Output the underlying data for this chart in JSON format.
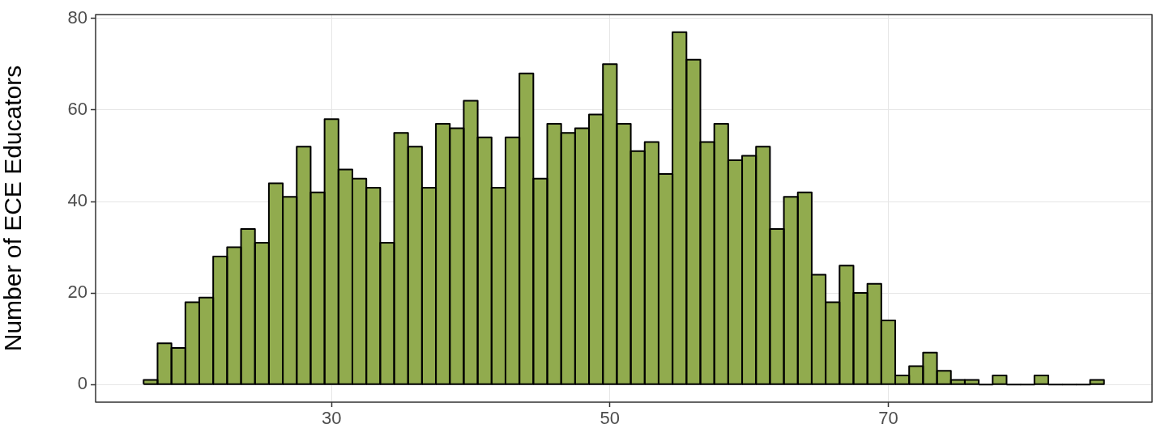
{
  "chart_data": {
    "type": "histogram",
    "ylabel": "Number of ECE Educators",
    "bins": [
      16.5,
      17.5,
      18.5,
      19.5,
      20.5,
      21.5,
      22.5,
      23.5,
      24.5,
      25.5,
      26.5,
      27.5,
      28.5,
      29.5,
      30.5,
      31.5,
      32.5,
      33.5,
      34.5,
      35.5,
      36.5,
      37.5,
      38.5,
      39.5,
      40.5,
      41.5,
      42.5,
      43.5,
      44.5,
      45.5,
      46.5,
      47.5,
      48.5,
      49.5,
      50.5,
      51.5,
      52.5,
      53.5,
      54.5,
      55.5,
      56.5,
      57.5,
      58.5,
      59.5,
      60.5,
      61.5,
      62.5,
      63.5,
      64.5,
      65.5,
      66.5,
      67.5,
      68.5,
      69.5,
      70.5,
      71.5,
      72.5,
      73.5,
      74.5,
      75.5,
      76.5,
      77.5,
      78.5,
      79.5,
      80.5,
      81.5,
      82.5,
      83.5,
      84.5,
      85.5
    ],
    "values": [
      1,
      9,
      8,
      18,
      19,
      28,
      30,
      34,
      31,
      44,
      41,
      52,
      42,
      58,
      47,
      45,
      43,
      31,
      55,
      52,
      43,
      57,
      56,
      62,
      54,
      43,
      54,
      68,
      45,
      57,
      55,
      56,
      59,
      70,
      57,
      51,
      53,
      46,
      77,
      71,
      53,
      57,
      49,
      50,
      52,
      34,
      41,
      42,
      24,
      18,
      26,
      20,
      22,
      14,
      2,
      4,
      7,
      3,
      1,
      1,
      0,
      2,
      0,
      0,
      2,
      0,
      0,
      0,
      1
    ],
    "color": "#91ab4e",
    "xlim": [
      13.05,
      88.95
    ],
    "xticks": [
      30,
      50,
      70
    ],
    "ylim": [
      -3.85,
      80.85
    ],
    "yticks": [
      0,
      20,
      40,
      60,
      80
    ],
    "grid": true
  }
}
